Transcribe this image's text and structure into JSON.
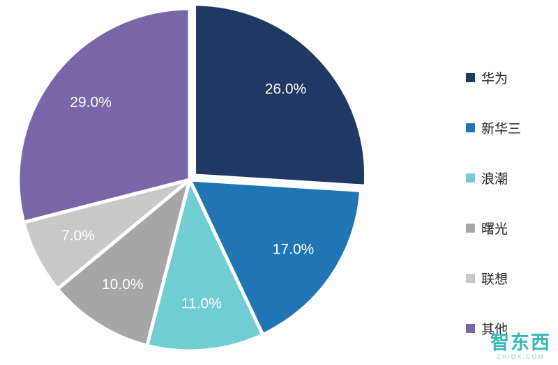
{
  "chart_data": {
    "type": "pie",
    "title": "",
    "categories": [
      "华为",
      "新华三",
      "浪潮",
      "曙光",
      "联想",
      "其他"
    ],
    "values": [
      26.0,
      17.0,
      11.0,
      10.0,
      7.0,
      29.0
    ],
    "labels": [
      "26.0%",
      "17.0%",
      "11.0%",
      "10.0%",
      "7.0%",
      "29.0%"
    ],
    "colors": [
      "#1F3864",
      "#2076B4",
      "#70CDD4",
      "#A6A6A6",
      "#C8C8C8",
      "#7767A9"
    ],
    "start_angle": 0,
    "direction": "clockwise",
    "legend_position": "right",
    "label_color": "#FFFFFF",
    "slice_border_color": "#FFFFFF"
  },
  "watermark": {
    "text": "智东西",
    "subtext": "ZHIDX.COM"
  }
}
